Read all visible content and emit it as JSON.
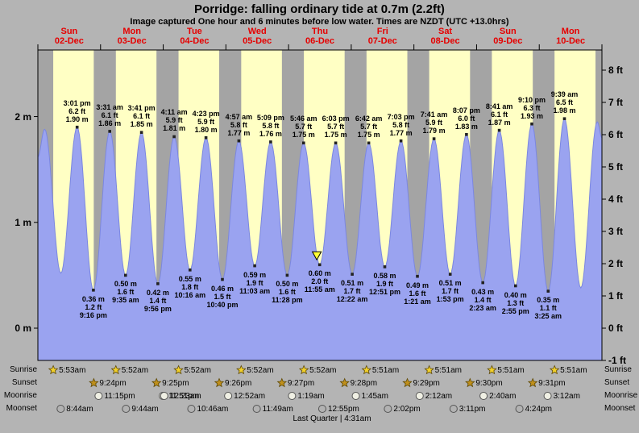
{
  "chart_data": {
    "type": "area",
    "title": "Porridge: falling ordinary tide at 0.7m (2.2ft)",
    "subtitle": "Image captured One hour and 6 minutes before low water. Times are NZDT (UTC +13.0hrs)",
    "y_axis_left_unit": "m",
    "y_axis_right_unit": "ft",
    "ylim_ft": [
      -1,
      8
    ],
    "x_range_days": 9,
    "axes": {
      "left_ticks": [
        {
          "label": "2 m",
          "value": 2
        },
        {
          "label": "1 m",
          "value": 1
        },
        {
          "label": "0 m",
          "value": 0
        }
      ],
      "right_ticks": [
        {
          "label": "8 ft",
          "value": 8
        },
        {
          "label": "7 ft",
          "value": 7
        },
        {
          "label": "6 ft",
          "value": 6
        },
        {
          "label": "5 ft",
          "value": 5
        },
        {
          "label": "4 ft",
          "value": 4
        },
        {
          "label": "3 ft",
          "value": 3
        },
        {
          "label": "2 ft",
          "value": 2
        },
        {
          "label": "1 ft",
          "value": 1
        },
        {
          "label": "0 ft",
          "value": 0
        },
        {
          "label": "-1 ft",
          "value": -1
        }
      ]
    },
    "days": [
      {
        "name": "Sun",
        "date": "02-Dec"
      },
      {
        "name": "Mon",
        "date": "03-Dec"
      },
      {
        "name": "Tue",
        "date": "04-Dec"
      },
      {
        "name": "Wed",
        "date": "05-Dec"
      },
      {
        "name": "Thu",
        "date": "06-Dec"
      },
      {
        "name": "Fri",
        "date": "07-Dec"
      },
      {
        "name": "Sat",
        "date": "08-Dec"
      },
      {
        "name": "Sun",
        "date": "09-Dec"
      },
      {
        "name": "Mon",
        "date": "10-Dec"
      }
    ],
    "tide_events": [
      {
        "day": 0,
        "type": "high",
        "time": "3:01 pm",
        "height_ft": "6.2",
        "height_m": "1.90"
      },
      {
        "day": 0,
        "type": "low",
        "time": "9:16 pm",
        "height_ft": "1.2",
        "height_m": "0.36"
      },
      {
        "day": 1,
        "type": "high",
        "time": "3:31 am",
        "height_ft": "6.1",
        "height_m": "1.86"
      },
      {
        "day": 1,
        "type": "low",
        "time": "9:35 am",
        "height_ft": "1.6",
        "height_m": "0.50"
      },
      {
        "day": 1,
        "type": "high",
        "time": "3:41 pm",
        "height_ft": "6.1",
        "height_m": "1.85"
      },
      {
        "day": 1,
        "type": "low",
        "time": "9:56 pm",
        "height_ft": "1.4",
        "height_m": "0.42"
      },
      {
        "day": 2,
        "type": "high",
        "time": "4:11 am",
        "height_ft": "5.9",
        "height_m": "1.81"
      },
      {
        "day": 2,
        "type": "low",
        "time": "10:16 am",
        "height_ft": "1.8",
        "height_m": "0.55"
      },
      {
        "day": 2,
        "type": "high",
        "time": "4:23 pm",
        "height_ft": "5.9",
        "height_m": "1.80"
      },
      {
        "day": 2,
        "type": "low",
        "time": "10:40 pm",
        "height_ft": "1.5",
        "height_m": "0.46"
      },
      {
        "day": 3,
        "type": "high",
        "time": "4:57 am",
        "height_ft": "5.8",
        "height_m": "1.77"
      },
      {
        "day": 3,
        "type": "low",
        "time": "11:03 am",
        "height_ft": "1.9",
        "height_m": "0.59"
      },
      {
        "day": 3,
        "type": "high",
        "time": "5:09 pm",
        "height_ft": "5.8",
        "height_m": "1.76"
      },
      {
        "day": 3,
        "type": "low",
        "time": "11:28 pm",
        "height_ft": "1.6",
        "height_m": "0.50"
      },
      {
        "day": 4,
        "type": "high",
        "time": "5:46 am",
        "height_ft": "5.7",
        "height_m": "1.75"
      },
      {
        "day": 4,
        "type": "low",
        "time": "11:55 am",
        "height_ft": "2.0",
        "height_m": "0.60",
        "current_marker": true
      },
      {
        "day": 4,
        "type": "high",
        "time": "6:03 pm",
        "height_ft": "5.7",
        "height_m": "1.75"
      },
      {
        "day": 5,
        "type": "low",
        "time": "12:22 am",
        "height_ft": "1.7",
        "height_m": "0.51"
      },
      {
        "day": 5,
        "type": "high",
        "time": "6:42 am",
        "height_ft": "5.7",
        "height_m": "1.75"
      },
      {
        "day": 5,
        "type": "low",
        "time": "12:51 pm",
        "height_ft": "1.9",
        "height_m": "0.58"
      },
      {
        "day": 5,
        "type": "high",
        "time": "7:03 pm",
        "height_ft": "5.8",
        "height_m": "1.77"
      },
      {
        "day": 6,
        "type": "low",
        "time": "1:21 am",
        "height_ft": "1.6",
        "height_m": "0.49"
      },
      {
        "day": 6,
        "type": "high",
        "time": "7:41 am",
        "height_ft": "5.9",
        "height_m": "1.79"
      },
      {
        "day": 6,
        "type": "low",
        "time": "1:53 pm",
        "height_ft": "1.7",
        "height_m": "0.51"
      },
      {
        "day": 6,
        "type": "high",
        "time": "8:07 pm",
        "height_ft": "6.0",
        "height_m": "1.83"
      },
      {
        "day": 7,
        "type": "low",
        "time": "2:23 am",
        "height_ft": "1.4",
        "height_m": "0.43"
      },
      {
        "day": 7,
        "type": "high",
        "time": "8:41 am",
        "height_ft": "6.1",
        "height_m": "1.87"
      },
      {
        "day": 7,
        "type": "low",
        "time": "2:55 pm",
        "height_ft": "1.3",
        "height_m": "0.40"
      },
      {
        "day": 7,
        "type": "high",
        "time": "9:10 pm",
        "height_ft": "6.3",
        "height_m": "1.93"
      },
      {
        "day": 8,
        "type": "low",
        "time": "3:25 am",
        "height_ft": "1.1",
        "height_m": "0.35"
      },
      {
        "day": 8,
        "type": "high",
        "time": "9:39 am",
        "height_ft": "6.5",
        "height_m": "1.98"
      }
    ],
    "sun_moon": {
      "sunrise": [
        {
          "day": 0,
          "time": "5:53am"
        },
        {
          "day": 1,
          "time": "5:52am"
        },
        {
          "day": 2,
          "time": "5:52am"
        },
        {
          "day": 3,
          "time": "5:52am"
        },
        {
          "day": 4,
          "time": "5:52am"
        },
        {
          "day": 5,
          "time": "5:51am"
        },
        {
          "day": 6,
          "time": "5:51am"
        },
        {
          "day": 7,
          "time": "5:51am"
        },
        {
          "day": 8,
          "time": "5:51am"
        }
      ],
      "sunset": [
        {
          "day": 0,
          "time": "9:24pm"
        },
        {
          "day": 1,
          "time": "9:25pm"
        },
        {
          "day": 2,
          "time": "9:26pm"
        },
        {
          "day": 3,
          "time": "9:27pm"
        },
        {
          "day": 4,
          "time": "9:28pm"
        },
        {
          "day": 5,
          "time": "9:29pm"
        },
        {
          "day": 6,
          "time": "9:30pm"
        },
        {
          "day": 7,
          "time": "9:31pm"
        }
      ],
      "moonrise": [
        {
          "day": 0,
          "time": "11:15pm"
        },
        {
          "day": 1,
          "time": "11:51pm"
        },
        {
          "day": 2,
          "time": "12:23am"
        },
        {
          "day": 3,
          "time": "12:52am"
        },
        {
          "day": 4,
          "time": "1:19am"
        },
        {
          "day": 5,
          "time": "1:45am"
        },
        {
          "day": 6,
          "time": "2:12am"
        },
        {
          "day": 7,
          "time": "2:40am"
        },
        {
          "day": 8,
          "time": "3:12am"
        }
      ],
      "moonset": [
        {
          "day": 0,
          "time": "8:44am"
        },
        {
          "day": 1,
          "time": "9:44am"
        },
        {
          "day": 2,
          "time": "10:46am"
        },
        {
          "day": 3,
          "time": "11:49am"
        },
        {
          "day": 4,
          "time": "12:55pm"
        },
        {
          "day": 5,
          "time": "2:02pm"
        },
        {
          "day": 6,
          "time": "3:11pm"
        },
        {
          "day": 7,
          "time": "4:24pm"
        }
      ]
    },
    "moon_phase": "Last Quarter | 4:31am",
    "side_labels": {
      "sunrise": "Sunrise",
      "sunset": "Sunset",
      "moonrise": "Moonrise",
      "moonset": "Moonset"
    },
    "colors": {
      "background": "#b4b4b4",
      "night_band": "#a4a4a4",
      "day_band": "#ffffc4",
      "tide_fill": "#9aa3f0",
      "tide_stroke": "#7b87e0",
      "day_label": "#e60000",
      "marker_triangle": "#ffff33",
      "sunrise_star": "#f2d12b",
      "sunset_star": "#c0901c",
      "moonrise_circle": "#f0f0e4",
      "moonset_circle": "#b2b2b2"
    }
  }
}
